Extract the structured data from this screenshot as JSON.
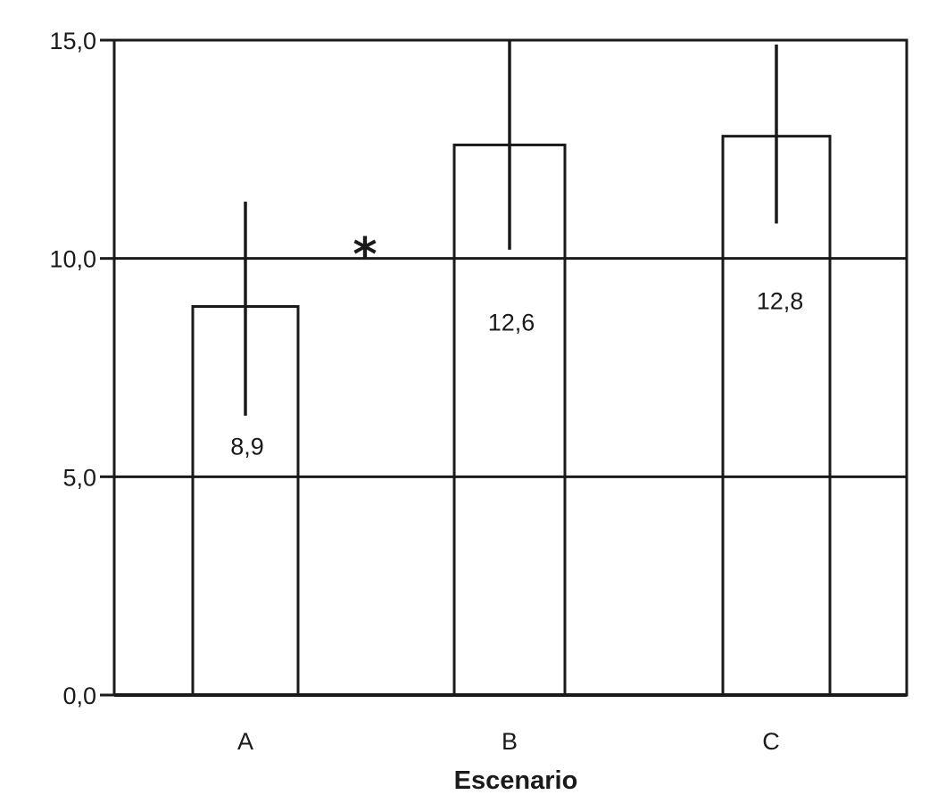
{
  "chart_data": {
    "type": "bar",
    "categories": [
      "A",
      "B",
      "C"
    ],
    "values": [
      8.9,
      12.6,
      12.8
    ],
    "value_labels": [
      "8,9",
      "12,6",
      "12,8"
    ],
    "error_bars": [
      {
        "low": 6.4,
        "high": 11.3
      },
      {
        "low": 10.2,
        "high": 15.0
      },
      {
        "low": 10.8,
        "high": 14.9
      }
    ],
    "ylim": [
      0,
      15
    ],
    "yticks": [
      0,
      5,
      10,
      15
    ],
    "ytick_labels": [
      "0,0",
      "5,0",
      "10,0",
      "15,0"
    ],
    "grid": true,
    "xlabel": "Escenario",
    "ylabel": "",
    "title": "",
    "annotation": {
      "text": "*",
      "between": [
        "A",
        "B"
      ],
      "y": 10.3
    },
    "colors": {
      "stroke": "#1a1a1a",
      "bar_fill": "#ffffff"
    }
  }
}
